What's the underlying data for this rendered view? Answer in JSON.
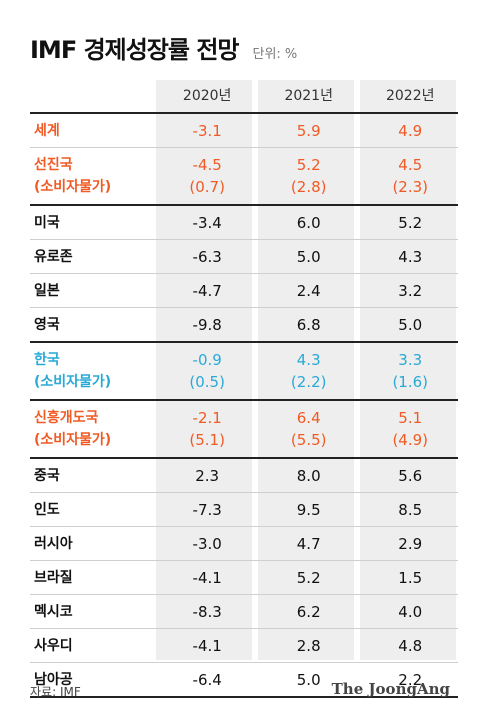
{
  "title": "IMF 경제성장률 전망",
  "unit": "단위: %",
  "columns": [
    "2020년",
    "2021년",
    "2022년"
  ],
  "rows": [
    {
      "label": "세계",
      "values": [
        "-3.1",
        "5.9",
        "4.9"
      ]
    },
    {
      "label": "선진국",
      "sub": "(소비자물가)",
      "values": [
        "-4.5",
        "5.2",
        "4.5"
      ],
      "subvalues": [
        "(0.7)",
        "(2.8)",
        "(2.3)"
      ]
    },
    {
      "label": "미국",
      "values": [
        "-3.4",
        "6.0",
        "5.2"
      ]
    },
    {
      "label": "유로존",
      "values": [
        "-6.3",
        "5.0",
        "4.3"
      ]
    },
    {
      "label": "일본",
      "values": [
        "-4.7",
        "2.4",
        "3.2"
      ]
    },
    {
      "label": "영국",
      "values": [
        "-9.8",
        "6.8",
        "5.0"
      ]
    },
    {
      "label": "한국",
      "sub": "(소비자물가)",
      "values": [
        "-0.9",
        "4.3",
        "3.3"
      ],
      "subvalues": [
        "(0.5)",
        "(2.2)",
        "(1.6)"
      ]
    },
    {
      "label": "신흥개도국",
      "sub": "(소비자물가)",
      "values": [
        "-2.1",
        "6.4",
        "5.1"
      ],
      "subvalues": [
        "(5.1)",
        "(5.5)",
        "(4.9)"
      ]
    },
    {
      "label": "중국",
      "values": [
        "2.3",
        "8.0",
        "5.6"
      ]
    },
    {
      "label": "인도",
      "values": [
        "-7.3",
        "9.5",
        "8.5"
      ]
    },
    {
      "label": "러시아",
      "values": [
        "-3.0",
        "4.7",
        "2.9"
      ]
    },
    {
      "label": "브라질",
      "values": [
        "-4.1",
        "5.2",
        "1.5"
      ]
    },
    {
      "label": "멕시코",
      "values": [
        "-8.3",
        "6.2",
        "4.0"
      ]
    },
    {
      "label": "사우디",
      "values": [
        "-4.1",
        "2.8",
        "4.8"
      ]
    },
    {
      "label": "남아공",
      "values": [
        "-6.4",
        "5.0",
        "2.2"
      ]
    }
  ],
  "source": "자료: IMF",
  "brand": "The JoongAng",
  "colors": {
    "orange": "#f15a24",
    "blue": "#29a9d6",
    "column_bg": "#eeeeee"
  }
}
